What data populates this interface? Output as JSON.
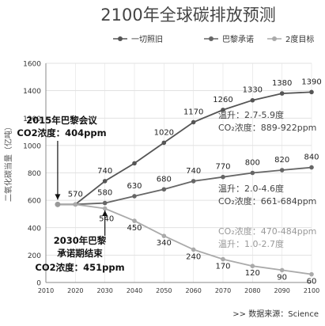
{
  "chart_data": {
    "type": "line",
    "title": "2100年全球碳排放预测",
    "ylabel": "二氧化碳当量（亿吨）",
    "xlabel": "",
    "x": [
      2014,
      2020,
      2030,
      2040,
      2050,
      2060,
      2070,
      2080,
      2090,
      2100
    ],
    "xticks": [
      2010,
      2020,
      2030,
      2040,
      2050,
      2060,
      2070,
      2080,
      2090,
      2100
    ],
    "yticks": [
      0,
      200,
      400,
      600,
      800,
      1000,
      1200,
      1400,
      1600
    ],
    "xlim": [
      2010,
      2100
    ],
    "ylim": [
      0,
      1600
    ],
    "grid": true,
    "legend_position": "top",
    "series": [
      {
        "name": "一切照旧",
        "color": "#555555",
        "values": [
          570,
          570,
          740,
          870,
          1020,
          1170,
          1260,
          1330,
          1380,
          1390
        ],
        "labels": [
          "570",
          "",
          "740",
          "",
          "1020",
          "1170",
          "1260",
          "1330",
          "1380",
          "1390"
        ]
      },
      {
        "name": "巴黎承诺",
        "color": "#666666",
        "values": [
          570,
          570,
          580,
          630,
          680,
          740,
          770,
          800,
          820,
          840
        ],
        "labels": [
          "",
          "",
          "580",
          "630",
          "680",
          "740",
          "770",
          "800",
          "820",
          "840"
        ]
      },
      {
        "name": "2度目标",
        "color": "#aaaaaa",
        "values": [
          570,
          570,
          540,
          450,
          340,
          240,
          170,
          120,
          90,
          60
        ],
        "labels": [
          "",
          "",
          "540",
          "450",
          "340",
          "240",
          "170",
          "120",
          "90",
          "60"
        ]
      }
    ],
    "annotations": {
      "paris_conf_line1": "2015年巴黎会议",
      "paris_conf_line2": "CO2浓度：404ppm",
      "paris_end_line1": "2030年巴黎",
      "paris_end_line2": "承诺期结束",
      "paris_end_line3": "CO2浓度：451ppm",
      "bau_temp": "温升：2.7-5.9度",
      "bau_co2": "CO₂浓度：889-922ppm",
      "paris_temp": "温升：2.0-4.6度",
      "paris_co2": "CO₂浓度：661-684ppm",
      "two_co2": "CO₂浓度：470-484ppm",
      "two_temp": "温升：1.0-2.7度"
    },
    "source": ">> 数据来源：Science"
  }
}
